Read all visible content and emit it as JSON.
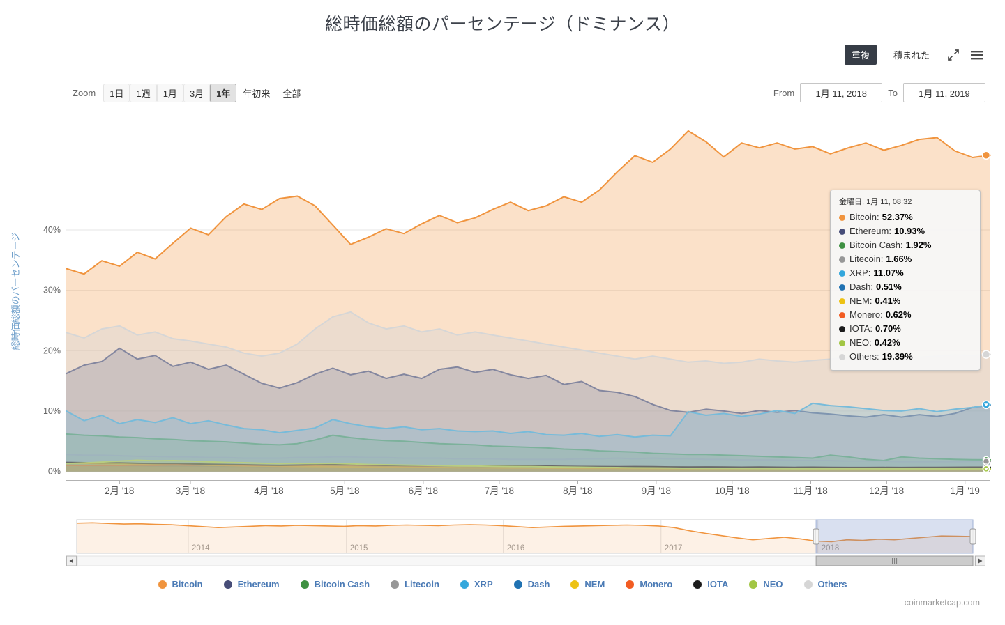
{
  "header": {
    "title": "総時価総額のパーセンテージ（ドミナンス）",
    "mode_overlapped": "重複",
    "mode_stacked": "積まれた"
  },
  "range_selector": {
    "zoom_label": "Zoom",
    "buttons": [
      "1日",
      "1週",
      "1月",
      "3月",
      "1年",
      "年初来",
      "全部"
    ],
    "selected": "1年",
    "from_label": "From",
    "from_value": "1月 11, 2018",
    "to_label": "To",
    "to_value": "1月 11, 2019"
  },
  "watermark": "coinmarketcap.com",
  "chart_data": {
    "type": "area",
    "mode": "overlapped",
    "title": "総時価総額のパーセンテージ（ドミナンス）",
    "ylabel": "総時価総額のパーセンテージ",
    "ylim": [
      0,
      60
    ],
    "grid": "horizontal",
    "yticks": [
      "0%",
      "10%",
      "20%",
      "30%",
      "40%"
    ],
    "ytick_values": [
      0,
      10,
      20,
      30,
      40
    ],
    "x_range": [
      "1月 11, 2018",
      "1月 11, 2019"
    ],
    "xticks": [
      {
        "label": "2月 '18",
        "day": 21
      },
      {
        "label": "3月 '18",
        "day": 49
      },
      {
        "label": "4月 '18",
        "day": 80
      },
      {
        "label": "5月 '18",
        "day": 110
      },
      {
        "label": "6月 '18",
        "day": 141
      },
      {
        "label": "7月 '18",
        "day": 171
      },
      {
        "label": "8月 '18",
        "day": 202
      },
      {
        "label": "9月 '18",
        "day": 233
      },
      {
        "label": "10月 '18",
        "day": 263
      },
      {
        "label": "11月 '18",
        "day": 294
      },
      {
        "label": "12月 '18",
        "day": 324
      },
      {
        "label": "1月 '19",
        "day": 355
      }
    ],
    "series": [
      {
        "name": "Bitcoin",
        "color": "#f0943e",
        "fill_opacity": 0.28,
        "values": [
          33.6,
          32.7,
          34.9,
          34.0,
          36.3,
          35.2,
          37.8,
          40.3,
          39.2,
          42.2,
          44.3,
          43.4,
          45.2,
          45.6,
          44.0,
          40.8,
          37.6,
          38.8,
          40.2,
          39.4,
          41.0,
          42.4,
          41.2,
          42.0,
          43.4,
          44.6,
          43.2,
          44.0,
          45.5,
          44.6,
          46.6,
          49.6,
          52.3,
          51.2,
          53.4,
          56.4,
          54.6,
          52.1,
          54.4,
          53.6,
          54.4,
          53.4,
          53.8,
          52.6,
          53.6,
          54.4,
          53.2,
          54.0,
          55.0,
          55.3,
          53.1,
          52.0,
          52.37
        ]
      },
      {
        "name": "Ethereum",
        "color": "#474d78",
        "fill_opacity": 0.3,
        "values": [
          16.2,
          17.6,
          18.2,
          20.4,
          18.6,
          19.2,
          17.4,
          18.1,
          16.9,
          17.6,
          16.1,
          14.6,
          13.8,
          14.7,
          16.1,
          17.1,
          16.0,
          16.6,
          15.4,
          16.1,
          15.4,
          16.9,
          17.3,
          16.4,
          16.9,
          16.0,
          15.4,
          15.9,
          14.4,
          14.9,
          13.4,
          13.1,
          12.4,
          11.1,
          10.1,
          9.8,
          10.3,
          10.0,
          9.6,
          10.1,
          9.8,
          10.1,
          9.7,
          9.5,
          9.2,
          9.0,
          9.4,
          9.0,
          9.4,
          9.1,
          9.6,
          10.6,
          10.93
        ]
      },
      {
        "name": "Bitcoin Cash",
        "color": "#3f9142",
        "fill_opacity": 0.3,
        "values": [
          6.2,
          6.0,
          5.9,
          5.7,
          5.6,
          5.4,
          5.3,
          5.1,
          5.0,
          4.9,
          4.7,
          4.5,
          4.4,
          4.6,
          5.2,
          6.0,
          5.6,
          5.3,
          5.1,
          5.0,
          4.8,
          4.6,
          4.5,
          4.4,
          4.2,
          4.1,
          4.0,
          3.9,
          3.7,
          3.6,
          3.4,
          3.3,
          3.2,
          3.0,
          2.9,
          2.8,
          2.8,
          2.7,
          2.6,
          2.5,
          2.4,
          2.3,
          2.2,
          2.7,
          2.4,
          2.0,
          1.8,
          2.4,
          2.2,
          2.1,
          2.0,
          1.95,
          1.92
        ]
      },
      {
        "name": "Litecoin",
        "color": "#979797",
        "fill_opacity": 0.22,
        "values": [
          2.8,
          2.7,
          2.7,
          2.6,
          2.5,
          2.5,
          2.4,
          2.4,
          2.3,
          2.3,
          2.2,
          2.2,
          2.2,
          2.3,
          2.3,
          2.4,
          2.4,
          2.3,
          2.3,
          2.2,
          2.2,
          2.2,
          2.1,
          2.1,
          2.1,
          2.0,
          2.0,
          2.0,
          2.0,
          2.1,
          2.1,
          2.2,
          2.1,
          2.2,
          2.1,
          2.1,
          2.0,
          2.0,
          1.9,
          1.9,
          1.9,
          1.8,
          1.8,
          1.8,
          1.7,
          1.7,
          1.7,
          1.6,
          1.6,
          1.6,
          1.6,
          1.65,
          1.66
        ]
      },
      {
        "name": "XRP",
        "color": "#33a7dc",
        "fill_opacity": 0.3,
        "values": [
          10.0,
          8.4,
          9.3,
          7.9,
          8.6,
          8.1,
          8.9,
          7.9,
          8.4,
          7.7,
          7.1,
          6.9,
          6.4,
          6.8,
          7.2,
          8.6,
          7.9,
          7.4,
          7.1,
          7.4,
          6.9,
          7.1,
          6.7,
          6.6,
          6.7,
          6.3,
          6.6,
          6.1,
          6.0,
          6.3,
          5.8,
          6.1,
          5.7,
          6.0,
          5.9,
          9.9,
          9.3,
          9.6,
          9.1,
          9.5,
          10.1,
          9.6,
          11.3,
          10.9,
          10.7,
          10.4,
          10.1,
          10.0,
          10.4,
          9.9,
          10.3,
          10.6,
          11.07
        ]
      },
      {
        "name": "Dash",
        "color": "#2072b2",
        "fill_opacity": 0.3,
        "values": [
          1.0,
          0.98,
          0.96,
          0.97,
          0.94,
          0.92,
          0.9,
          0.91,
          0.88,
          0.86,
          0.84,
          0.82,
          0.8,
          0.82,
          0.85,
          0.88,
          0.84,
          0.8,
          0.78,
          0.76,
          0.74,
          0.72,
          0.7,
          0.69,
          0.68,
          0.66,
          0.65,
          0.64,
          0.62,
          0.61,
          0.6,
          0.58,
          0.57,
          0.56,
          0.55,
          0.54,
          0.54,
          0.53,
          0.52,
          0.52,
          0.51,
          0.5,
          0.5,
          0.49,
          0.49,
          0.48,
          0.48,
          0.49,
          0.5,
          0.5,
          0.51,
          0.51,
          0.51
        ]
      },
      {
        "name": "NEM",
        "color": "#edc213",
        "fill_opacity": 0.3,
        "values": [
          1.4,
          1.35,
          1.3,
          1.28,
          1.22,
          1.18,
          1.12,
          1.08,
          1.02,
          0.98,
          0.92,
          0.88,
          0.85,
          0.82,
          0.8,
          0.78,
          0.75,
          0.72,
          0.7,
          0.68,
          0.66,
          0.64,
          0.62,
          0.6,
          0.58,
          0.57,
          0.55,
          0.54,
          0.52,
          0.51,
          0.5,
          0.49,
          0.48,
          0.47,
          0.46,
          0.45,
          0.45,
          0.44,
          0.44,
          0.43,
          0.43,
          0.42,
          0.42,
          0.42,
          0.41,
          0.41,
          0.41,
          0.41,
          0.41,
          0.41,
          0.41,
          0.41,
          0.41
        ]
      },
      {
        "name": "Monero",
        "color": "#f25c22",
        "fill_opacity": 0.3,
        "values": [
          1.0,
          0.98,
          1.02,
          0.99,
          1.05,
          1.02,
          1.08,
          1.04,
          1.1,
          1.06,
          1.02,
          0.98,
          0.95,
          0.98,
          1.02,
          1.06,
          1.02,
          0.98,
          0.95,
          0.92,
          0.9,
          0.92,
          0.9,
          0.88,
          0.86,
          0.84,
          0.85,
          0.83,
          0.8,
          0.78,
          0.76,
          0.74,
          0.75,
          0.72,
          0.7,
          0.68,
          0.7,
          0.68,
          0.66,
          0.68,
          0.66,
          0.64,
          0.66,
          0.64,
          0.62,
          0.6,
          0.62,
          0.6,
          0.61,
          0.6,
          0.61,
          0.62,
          0.62
        ]
      },
      {
        "name": "IOTA",
        "color": "#1c1c1c",
        "fill_opacity": 0.22,
        "values": [
          1.5,
          1.45,
          1.4,
          1.42,
          1.35,
          1.3,
          1.32,
          1.25,
          1.2,
          1.15,
          1.1,
          1.05,
          1.0,
          1.05,
          1.1,
          1.15,
          1.1,
          1.05,
          1.0,
          0.98,
          0.95,
          0.98,
          0.95,
          0.92,
          0.9,
          0.88,
          0.9,
          0.88,
          0.85,
          0.82,
          0.8,
          0.78,
          0.8,
          0.78,
          0.75,
          0.73,
          0.75,
          0.73,
          0.7,
          0.72,
          0.7,
          0.68,
          0.7,
          0.68,
          0.66,
          0.65,
          0.67,
          0.66,
          0.68,
          0.67,
          0.69,
          0.7,
          0.7
        ]
      },
      {
        "name": "NEO",
        "color": "#a2c644",
        "fill_opacity": 0.3,
        "values": [
          1.3,
          1.4,
          1.55,
          1.7,
          1.85,
          1.75,
          1.8,
          1.7,
          1.6,
          1.5,
          1.45,
          1.35,
          1.3,
          1.35,
          1.3,
          1.35,
          1.25,
          1.15,
          1.1,
          1.05,
          1.0,
          0.95,
          0.9,
          0.88,
          0.85,
          0.82,
          0.8,
          0.76,
          0.72,
          0.7,
          0.66,
          0.64,
          0.6,
          0.58,
          0.55,
          0.52,
          0.5,
          0.5,
          0.48,
          0.47,
          0.46,
          0.45,
          0.44,
          0.44,
          0.43,
          0.43,
          0.42,
          0.42,
          0.42,
          0.42,
          0.42,
          0.42,
          0.42
        ]
      },
      {
        "name": "Others",
        "color": "#d6d6d6",
        "fill_opacity": 0.42,
        "values": [
          23.0,
          22.1,
          23.6,
          24.1,
          22.6,
          23.1,
          22.0,
          21.6,
          21.1,
          20.6,
          19.6,
          19.1,
          19.6,
          21.1,
          23.6,
          25.6,
          26.4,
          24.6,
          23.6,
          24.1,
          23.1,
          23.6,
          22.6,
          23.1,
          22.6,
          22.1,
          21.6,
          21.1,
          20.6,
          20.1,
          19.6,
          19.1,
          18.6,
          19.1,
          18.6,
          18.1,
          18.3,
          17.9,
          18.1,
          18.6,
          18.3,
          18.1,
          18.4,
          18.6,
          18.9,
          19.1,
          19.3,
          19.1,
          18.9,
          19.1,
          19.3,
          19.2,
          19.39
        ]
      }
    ],
    "tooltip": {
      "header": "金曜日, 1月 11, 08:32",
      "rows": [
        {
          "name": "Bitcoin",
          "value": "52.37%"
        },
        {
          "name": "Ethereum",
          "value": "10.93%"
        },
        {
          "name": "Bitcoin Cash",
          "value": "1.92%"
        },
        {
          "name": "Litecoin",
          "value": "1.66%"
        },
        {
          "name": "XRP",
          "value": "11.07%"
        },
        {
          "name": "Dash",
          "value": "0.51%"
        },
        {
          "name": "NEM",
          "value": "0.41%"
        },
        {
          "name": "Monero",
          "value": "0.62%"
        },
        {
          "name": "IOTA",
          "value": "0.70%"
        },
        {
          "name": "NEO",
          "value": "0.42%"
        },
        {
          "name": "Others",
          "value": "19.39%"
        }
      ]
    },
    "navigator": {
      "series_name": "Bitcoin",
      "color": "#f0943e",
      "year_labels": [
        "2014",
        "2015",
        "2016",
        "2017",
        "2018"
      ],
      "year_fracs": [
        0.1245,
        0.301,
        0.476,
        0.652,
        0.827
      ],
      "selected_range": [
        0.825,
        1.0
      ],
      "values": [
        94,
        95,
        93,
        91,
        92,
        90,
        89,
        86,
        83,
        80,
        82,
        84,
        86,
        85,
        87,
        86,
        85,
        84,
        86,
        85,
        87,
        88,
        87,
        86,
        88,
        89,
        88,
        86,
        83,
        80,
        82,
        84,
        85,
        86,
        87,
        88,
        87,
        85,
        80,
        70,
        62,
        55,
        48,
        42,
        46,
        50,
        45,
        38,
        36,
        42,
        40,
        44,
        42,
        46,
        50,
        54,
        53,
        52
      ]
    }
  },
  "legend": {
    "items": [
      {
        "label": "Bitcoin",
        "color": "#f0943e"
      },
      {
        "label": "Ethereum",
        "color": "#474d78"
      },
      {
        "label": "Bitcoin Cash",
        "color": "#3f9142"
      },
      {
        "label": "Litecoin",
        "color": "#979797"
      },
      {
        "label": "XRP",
        "color": "#33a7dc"
      },
      {
        "label": "Dash",
        "color": "#2072b2"
      },
      {
        "label": "NEM",
        "color": "#edc213"
      },
      {
        "label": "Monero",
        "color": "#f25c22"
      },
      {
        "label": "IOTA",
        "color": "#1c1c1c"
      },
      {
        "label": "NEO",
        "color": "#a2c644"
      },
      {
        "label": "Others",
        "color": "#d6d6d6"
      }
    ]
  }
}
